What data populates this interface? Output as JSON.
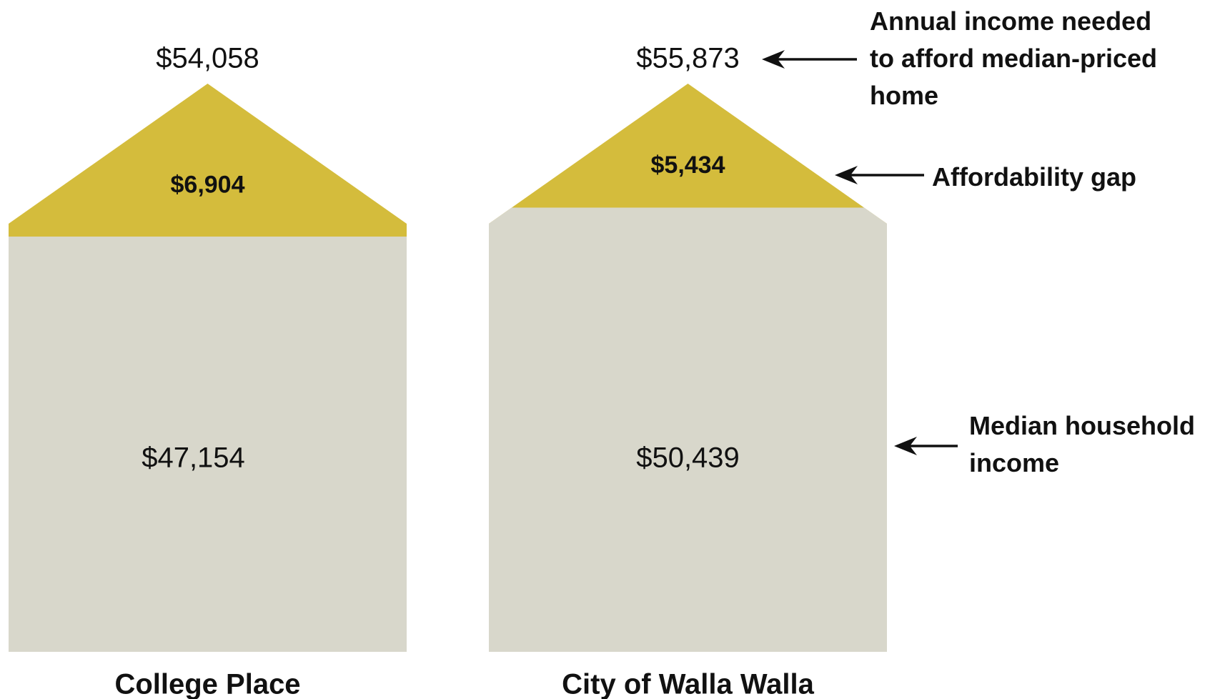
{
  "chart_data": {
    "type": "house",
    "categories": [
      "College Place",
      "City of Walla Walla"
    ],
    "series": [
      {
        "name": "Median household income",
        "color": "#d8d7cb",
        "values": [
          47154,
          50439
        ],
        "value_labels": [
          "$47,154",
          "$50,439"
        ]
      },
      {
        "name": "Affordability gap",
        "color": "#d4bc3c",
        "values": [
          6904,
          5434
        ],
        "value_labels": [
          "$6,904",
          "$5,434"
        ]
      },
      {
        "name": "Annual income needed to afford median-priced home",
        "values": [
          54058,
          55873
        ],
        "value_labels": [
          "$54,058",
          "$55,873"
        ]
      }
    ]
  }
}
